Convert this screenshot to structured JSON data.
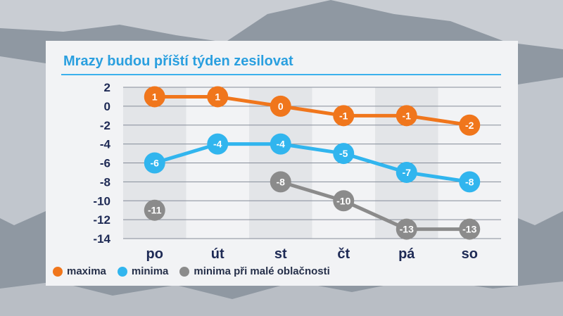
{
  "colors": {
    "maxima": "#f0761c",
    "minima": "#31b5ee",
    "minima_clear": "#8b8b8b",
    "title": "#2a9fdf",
    "axis_text": "#1e2a55"
  },
  "chart_data": {
    "type": "line",
    "title": "Mrazy budou příští týden zesilovat",
    "xlabel": "",
    "ylabel": "",
    "categories": [
      "po",
      "út",
      "st",
      "čt",
      "pá",
      "so"
    ],
    "ylim": [
      -14,
      2
    ],
    "yticks": [
      2,
      0,
      -2,
      -4,
      -6,
      -8,
      -10,
      -12,
      -14
    ],
    "grid": true,
    "legend_position": "bottom-left",
    "series": [
      {
        "name": "maxima",
        "values": [
          1,
          1,
          0,
          -1,
          -1,
          -2
        ],
        "color": "#f0761c"
      },
      {
        "name": "minima",
        "values": [
          -6,
          -4,
          -4,
          -5,
          -7,
          -8
        ],
        "color": "#31b5ee"
      },
      {
        "name": "minima při malé oblačnosti",
        "values": [
          -11,
          null,
          -8,
          -10,
          -13,
          -13
        ],
        "color": "#8b8b8b"
      }
    ]
  },
  "legend": {
    "maxima": "maxima",
    "minima": "minima",
    "minima_clear": "minima při malé oblačnosti"
  }
}
